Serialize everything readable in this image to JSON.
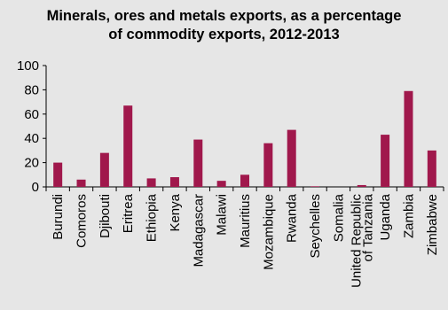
{
  "chart_data": {
    "type": "bar",
    "title_lines": [
      "Minerals, ores and metals exports, as a percentage",
      "of commodity exports, 2012-2013"
    ],
    "categories": [
      [
        "Burundi"
      ],
      [
        "Comoros"
      ],
      [
        "Djibouti"
      ],
      [
        "Eritrea"
      ],
      [
        "Ethiopia"
      ],
      [
        "Kenya"
      ],
      [
        "Madagascar"
      ],
      [
        "Malawi"
      ],
      [
        "Mauritius"
      ],
      [
        "Mozambique"
      ],
      [
        "Rwanda"
      ],
      [
        "Seychelles"
      ],
      [
        "Somalia"
      ],
      [
        "United Republic",
        "of Tanzania"
      ],
      [
        "Uganda"
      ],
      [
        "Zambia"
      ],
      [
        "Zimbabwe"
      ]
    ],
    "values": [
      20,
      6,
      28,
      67,
      7,
      8,
      39,
      5,
      10,
      36,
      47,
      0.5,
      0,
      1.5,
      43,
      79,
      30
    ],
    "ylim": [
      0,
      100
    ],
    "yticks": [
      "0",
      "20",
      "40",
      "60",
      "80",
      "100"
    ],
    "bar_color": "#a0184c",
    "grid": false,
    "legend": "none"
  }
}
